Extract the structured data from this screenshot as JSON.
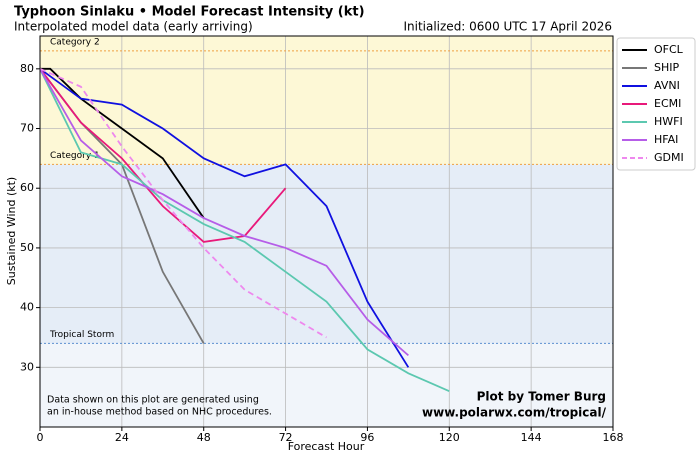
{
  "chart_data": {
    "type": "line",
    "title": "Typhoon Sinlaku • Model Forecast Intensity (kt)",
    "subtitle": "Interpolated model data (early arriving)",
    "initialized": "Initialized: 0600 UTC 17 April 2026",
    "note": [
      "Data shown on this plot are generated using",
      "an in-house method based on NHC procedures."
    ],
    "credit": [
      "Plot by Tomer Burg",
      "www.polarwx.com/tropical/"
    ],
    "xlabel": "Forecast Hour",
    "ylabel": "Sustained Wind (kt)",
    "xlim": [
      0,
      168
    ],
    "xticks": [
      0,
      24,
      48,
      72,
      96,
      120,
      144,
      168
    ],
    "ylim": [
      20,
      85.5
    ],
    "yticks": [
      30,
      40,
      50,
      60,
      70,
      80
    ],
    "grid": true,
    "legend": "outside-right",
    "thresholds": [
      {
        "value": 83,
        "label": "Category 2",
        "color": "#f0a040",
        "fill": "#fdf8d6"
      },
      {
        "value": 64,
        "label": "Category 1",
        "color": "#f0a040",
        "fill": "#fdf8d6"
      },
      {
        "value": 34,
        "label": "Tropical Storm",
        "color": "#5b8fd0",
        "fill": "#e5edf7"
      }
    ],
    "below_fill": "#f1f5fa",
    "series": [
      {
        "name": "OFCL",
        "color": "#000000",
        "x": [
          0,
          3,
          12,
          24,
          36,
          48
        ],
        "values": [
          80,
          80,
          75,
          70,
          65,
          55
        ]
      },
      {
        "name": "SHIP",
        "color": "#777777",
        "x": [
          0,
          12,
          24,
          36,
          48
        ],
        "values": [
          80,
          71,
          64,
          46,
          34
        ]
      },
      {
        "name": "AVNI",
        "color": "#1010e0",
        "x": [
          0,
          12,
          24,
          36,
          48,
          60,
          72,
          84,
          96,
          108
        ],
        "values": [
          80,
          75,
          74,
          70,
          65,
          62,
          64,
          57,
          41,
          30
        ]
      },
      {
        "name": "ECMI",
        "color": "#e8197a",
        "x": [
          0,
          12,
          24,
          36,
          48,
          60,
          72
        ],
        "values": [
          80,
          71,
          65,
          57,
          51,
          52,
          60
        ]
      },
      {
        "name": "HWFI",
        "color": "#5cc8b0",
        "x": [
          0,
          12,
          24,
          36,
          48,
          60,
          72,
          84,
          96,
          108,
          120
        ],
        "values": [
          80,
          66,
          64,
          58,
          54,
          51,
          46,
          41,
          33,
          29,
          26
        ]
      },
      {
        "name": "HFAI",
        "color": "#b65de8",
        "x": [
          0,
          12,
          24,
          36,
          48,
          60,
          72,
          84,
          96,
          108
        ],
        "values": [
          80,
          68,
          62,
          59,
          55,
          52,
          50,
          47,
          38,
          32
        ]
      },
      {
        "name": "GDMI",
        "color": "#ee88ee",
        "dashed": true,
        "x": [
          0,
          12,
          24,
          36,
          48,
          60,
          72,
          84
        ],
        "values": [
          80,
          77,
          67,
          58,
          50,
          43,
          39,
          35
        ]
      }
    ]
  }
}
